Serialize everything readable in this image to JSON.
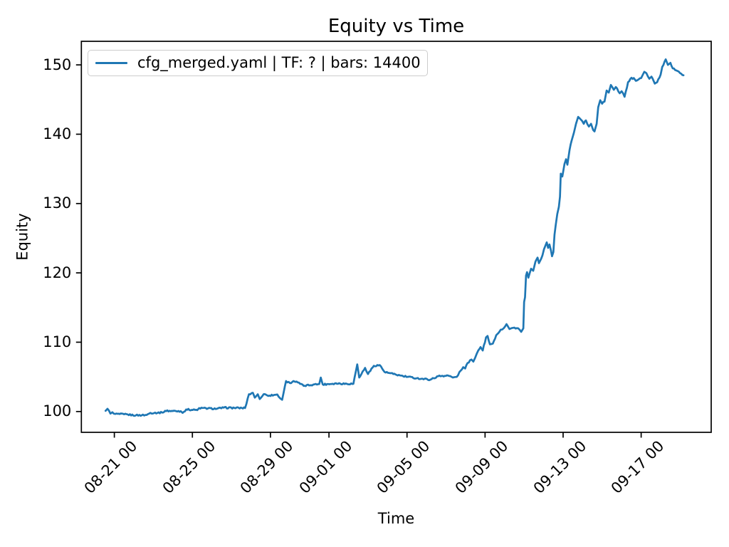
{
  "chart_data": {
    "type": "line",
    "title": "Equity vs Time",
    "xlabel": "Time",
    "ylabel": "Equity",
    "grid": false,
    "legend_position": "upper left",
    "x_axis_description": "time in days, day 0 = 08-20 00:00",
    "xlim": [
      -0.69,
      31.59
    ],
    "ylim": [
      97.0,
      153.4
    ],
    "y_ticks": [
      100,
      110,
      120,
      130,
      140,
      150
    ],
    "x_ticks": [
      {
        "day": 1,
        "label": "08-21 00"
      },
      {
        "day": 5,
        "label": "08-25 00"
      },
      {
        "day": 9,
        "label": "08-29 00"
      },
      {
        "day": 12,
        "label": "09-01 00"
      },
      {
        "day": 16,
        "label": "09-05 00"
      },
      {
        "day": 20,
        "label": "09-09 00"
      },
      {
        "day": 24,
        "label": "09-13 00"
      },
      {
        "day": 28,
        "label": "09-17 00"
      }
    ],
    "series": [
      {
        "name": "cfg_merged.yaml | TF: ? | bars: 14400",
        "color": "#1f77b4",
        "points": [
          [
            0.55,
            100.1
          ],
          [
            0.65,
            100.4
          ],
          [
            0.8,
            99.7
          ],
          [
            0.9,
            99.9
          ],
          [
            1.05,
            99.65
          ],
          [
            1.5,
            99.6
          ],
          [
            2.1,
            99.45
          ],
          [
            2.65,
            99.5
          ],
          [
            2.85,
            99.8
          ],
          [
            3.45,
            99.85
          ],
          [
            3.6,
            100.1
          ],
          [
            4.4,
            100.05
          ],
          [
            4.5,
            99.8
          ],
          [
            4.68,
            100.3
          ],
          [
            5.25,
            100.2
          ],
          [
            5.35,
            100.5
          ],
          [
            6.25,
            100.4
          ],
          [
            6.6,
            100.55
          ],
          [
            7.7,
            100.5
          ],
          [
            7.9,
            102.5
          ],
          [
            8.1,
            102.7
          ],
          [
            8.2,
            102.0
          ],
          [
            8.35,
            102.5
          ],
          [
            8.45,
            101.8
          ],
          [
            8.65,
            102.5
          ],
          [
            8.95,
            102.3
          ],
          [
            9.35,
            102.45
          ],
          [
            9.5,
            101.9
          ],
          [
            9.6,
            101.7
          ],
          [
            9.8,
            104.4
          ],
          [
            10.0,
            104.1
          ],
          [
            10.18,
            104.4
          ],
          [
            10.4,
            104.2
          ],
          [
            10.7,
            103.7
          ],
          [
            11.2,
            103.9
          ],
          [
            11.5,
            103.95
          ],
          [
            11.58,
            104.9
          ],
          [
            11.68,
            103.9
          ],
          [
            12.3,
            104.05
          ],
          [
            13.25,
            104.0
          ],
          [
            13.45,
            106.8
          ],
          [
            13.55,
            104.9
          ],
          [
            13.85,
            106.3
          ],
          [
            14.0,
            105.4
          ],
          [
            14.3,
            106.6
          ],
          [
            14.6,
            106.7
          ],
          [
            14.85,
            105.7
          ],
          [
            15.3,
            105.4
          ],
          [
            15.8,
            105.1
          ],
          [
            16.5,
            104.8
          ],
          [
            17.2,
            104.6
          ],
          [
            17.6,
            105.1
          ],
          [
            18.1,
            105.2
          ],
          [
            18.35,
            104.9
          ],
          [
            18.55,
            105.0
          ],
          [
            18.75,
            105.9
          ],
          [
            18.88,
            106.4
          ],
          [
            18.98,
            106.2
          ],
          [
            19.1,
            107.0
          ],
          [
            19.3,
            107.5
          ],
          [
            19.4,
            107.2
          ],
          [
            19.5,
            107.8
          ],
          [
            19.65,
            108.8
          ],
          [
            19.77,
            109.3
          ],
          [
            19.88,
            108.8
          ],
          [
            20.05,
            110.7
          ],
          [
            20.13,
            110.9
          ],
          [
            20.25,
            109.7
          ],
          [
            20.4,
            109.8
          ],
          [
            20.57,
            111.0
          ],
          [
            20.8,
            111.8
          ],
          [
            20.95,
            112.0
          ],
          [
            21.1,
            112.6
          ],
          [
            21.25,
            111.9
          ],
          [
            21.5,
            112.1
          ],
          [
            21.7,
            112.0
          ],
          [
            21.85,
            111.5
          ],
          [
            21.96,
            112.0
          ],
          [
            22.0,
            115.8
          ],
          [
            22.05,
            116.5
          ],
          [
            22.1,
            119.6
          ],
          [
            22.15,
            120.1
          ],
          [
            22.22,
            119.3
          ],
          [
            22.36,
            120.6
          ],
          [
            22.47,
            120.3
          ],
          [
            22.58,
            121.6
          ],
          [
            22.69,
            122.2
          ],
          [
            22.76,
            121.4
          ],
          [
            22.87,
            122.0
          ],
          [
            22.94,
            122.5
          ],
          [
            23.02,
            123.4
          ],
          [
            23.09,
            123.9
          ],
          [
            23.16,
            124.4
          ],
          [
            23.23,
            123.6
          ],
          [
            23.3,
            124.1
          ],
          [
            23.38,
            123.2
          ],
          [
            23.43,
            122.4
          ],
          [
            23.5,
            123.0
          ],
          [
            23.56,
            125.5
          ],
          [
            23.62,
            126.9
          ],
          [
            23.7,
            128.5
          ],
          [
            23.78,
            129.5
          ],
          [
            23.84,
            131.0
          ],
          [
            23.88,
            134.3
          ],
          [
            23.96,
            133.9
          ],
          [
            24.07,
            135.7
          ],
          [
            24.15,
            136.4
          ],
          [
            24.22,
            135.6
          ],
          [
            24.33,
            137.7
          ],
          [
            24.44,
            139.1
          ],
          [
            24.55,
            140.2
          ],
          [
            24.66,
            141.5
          ],
          [
            24.77,
            142.5
          ],
          [
            24.88,
            142.2
          ],
          [
            24.98,
            141.9
          ],
          [
            25.06,
            141.5
          ],
          [
            25.17,
            142.0
          ],
          [
            25.32,
            141.1
          ],
          [
            25.43,
            141.5
          ],
          [
            25.54,
            140.6
          ],
          [
            25.61,
            140.4
          ],
          [
            25.72,
            141.5
          ],
          [
            25.8,
            143.9
          ],
          [
            25.9,
            144.9
          ],
          [
            26.0,
            144.4
          ],
          [
            26.12,
            144.7
          ],
          [
            26.23,
            146.3
          ],
          [
            26.34,
            146.0
          ],
          [
            26.45,
            147.1
          ],
          [
            26.6,
            146.4
          ],
          [
            26.7,
            146.8
          ],
          [
            26.9,
            145.9
          ],
          [
            27.0,
            146.2
          ],
          [
            27.15,
            145.4
          ],
          [
            27.33,
            147.5
          ],
          [
            27.45,
            148.0
          ],
          [
            27.62,
            148.1
          ],
          [
            27.73,
            147.7
          ],
          [
            27.87,
            147.9
          ],
          [
            28.0,
            148.1
          ],
          [
            28.16,
            149.0
          ],
          [
            28.27,
            148.8
          ],
          [
            28.42,
            148.0
          ],
          [
            28.53,
            148.3
          ],
          [
            28.7,
            147.3
          ],
          [
            28.82,
            147.5
          ],
          [
            29.0,
            148.6
          ],
          [
            29.08,
            149.7
          ],
          [
            29.26,
            150.8
          ],
          [
            29.37,
            150.0
          ],
          [
            29.5,
            150.3
          ],
          [
            29.62,
            149.5
          ],
          [
            29.8,
            149.2
          ],
          [
            30.0,
            148.8
          ],
          [
            30.17,
            148.5
          ]
        ]
      }
    ]
  }
}
